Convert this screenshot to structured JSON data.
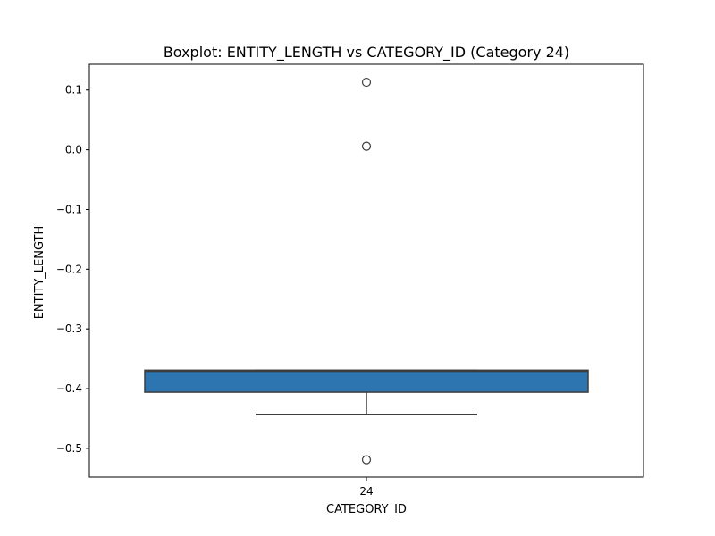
{
  "chart_data": {
    "type": "box",
    "title": "Boxplot: ENTITY_LENGTH vs CATEGORY_ID (Category 24)",
    "xlabel": "CATEGORY_ID",
    "ylabel": "ENTITY_LENGTH",
    "categories": [
      "24"
    ],
    "ylim": [
      -0.548,
      0.143
    ],
    "yticks": [
      0.1,
      0.0,
      -0.1,
      -0.2,
      -0.3,
      -0.4,
      -0.5
    ],
    "ytick_labels": [
      "0.1",
      "0.0",
      "−0.1",
      "−0.2",
      "−0.3",
      "−0.4",
      "−0.5"
    ],
    "grid": false,
    "boxes": [
      {
        "category": "24",
        "whisker_low": -0.443,
        "q1": -0.406,
        "median": -0.371,
        "q3": -0.369,
        "whisker_high": -0.369,
        "outliers": [
          0.113,
          0.006,
          -0.519
        ]
      }
    ],
    "colors": {
      "box_fill": "#2c75b0",
      "line": "#3d3d3d"
    }
  }
}
